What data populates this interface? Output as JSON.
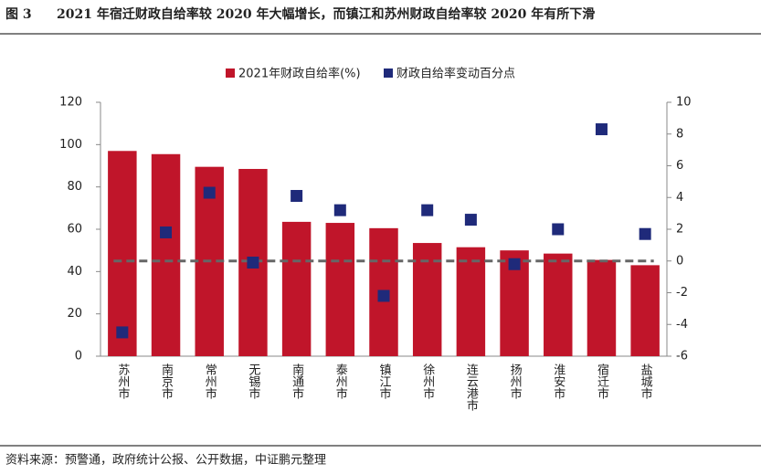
{
  "chart_data": {
    "type": "bar",
    "figure_label": "图 3",
    "title": "2021 年宿迁财政自给率较 2020 年大幅增长，而镇江和苏州财政自给率较 2020 年有所下滑",
    "source": "资料来源：预警通，政府统计公报、公开数据，中证鹏元整理",
    "categories": [
      "苏州市",
      "南京市",
      "常州市",
      "无锡市",
      "南通市",
      "泰州市",
      "镇江市",
      "徐州市",
      "连云港市",
      "扬州市",
      "淮安市",
      "宿迁市",
      "盐城市"
    ],
    "series": [
      {
        "name": "2021年财政自给率(%)",
        "color": "#c0152a",
        "type": "bar",
        "values": [
          97,
          95.5,
          89.5,
          88.5,
          63.5,
          63,
          60.5,
          53.5,
          51.5,
          50,
          48.5,
          45.5,
          43
        ]
      },
      {
        "name": "财政自给率变动百分点",
        "color": "#1f2a7a",
        "type": "scatter",
        "axis": "y2",
        "values": [
          -4.5,
          1.8,
          4.3,
          -0.1,
          4.1,
          3.2,
          -2.2,
          3.2,
          2.6,
          -0.2,
          2.0,
          8.3,
          1.7
        ]
      }
    ],
    "ylim": [
      0,
      120
    ],
    "yticks": [
      0,
      20,
      40,
      60,
      80,
      100,
      120
    ],
    "y2lim": [
      -6,
      10
    ],
    "y2ticks": [
      -6,
      -4,
      -2,
      0,
      2,
      4,
      6,
      8,
      10
    ],
    "legend": "top"
  }
}
